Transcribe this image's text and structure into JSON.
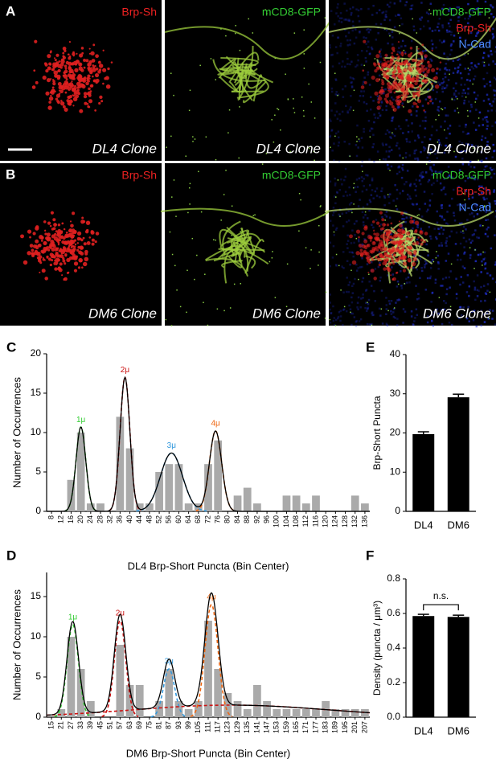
{
  "figure": {
    "image_rows": [
      {
        "panel": "A",
        "clone": "DL4 Clone"
      },
      {
        "panel": "B",
        "clone": "DM6 Clone"
      }
    ],
    "channels": {
      "red": "Brp-Sh",
      "green": "mCD8-GFP",
      "blue": "N-Cad"
    }
  },
  "chart_data": [
    {
      "panel": "C",
      "type": "histogram",
      "xlabel": "DL4 Brp-Short Puncta (Bin Center)",
      "ylabel": "Number of Occurrences",
      "categories": [
        8,
        12,
        16,
        20,
        24,
        28,
        32,
        36,
        40,
        44,
        48,
        52,
        56,
        60,
        64,
        68,
        72,
        76,
        80,
        84,
        88,
        92,
        96,
        100,
        104,
        108,
        112,
        116,
        120,
        124,
        128,
        132,
        136
      ],
      "values": [
        0,
        0,
        4,
        10,
        1,
        1,
        0,
        12,
        8,
        1,
        1,
        5,
        6,
        6,
        1,
        1,
        6,
        9,
        0,
        2,
        3,
        1,
        0,
        0,
        2,
        2,
        1,
        2,
        0,
        0,
        0,
        2,
        1
      ],
      "color": "#aaaaaa",
      "fit_color": "#000000",
      "fits": [
        {
          "label": "1μ",
          "color": "#33cc33",
          "amp": 10.7,
          "mean": 20,
          "sd": 2
        },
        {
          "label": "2μ",
          "color": "#cc1111",
          "amp": 17,
          "mean": 38,
          "sd": 2
        },
        {
          "label": "3μ",
          "color": "#3399dd",
          "amp": 7.4,
          "mean": 57,
          "sd": 4.5
        },
        {
          "label": "4μ",
          "color": "#ee6611",
          "amp": 10.2,
          "mean": 75,
          "sd": 2.5
        }
      ],
      "ylim": [
        0,
        20
      ],
      "yticks": [
        0,
        5,
        10,
        15,
        20
      ]
    },
    {
      "panel": "D",
      "type": "histogram",
      "xlabel": "DM6 Brp-Short Puncta (Bin Center)",
      "ylabel": "Number of Occurrences",
      "categories": [
        15,
        21,
        27,
        33,
        39,
        45,
        51,
        57,
        63,
        69,
        75,
        81,
        87,
        93,
        99,
        105,
        111,
        117,
        123,
        129,
        135,
        141,
        147,
        153,
        159,
        165,
        171,
        177,
        183,
        189,
        195,
        201,
        207
      ],
      "values": [
        0,
        1,
        10,
        6,
        2,
        0,
        0,
        9,
        4,
        4,
        0,
        2,
        6,
        2,
        1,
        2,
        12,
        6,
        3,
        2,
        1,
        4,
        2,
        1,
        1,
        1,
        1,
        1,
        2,
        1,
        1,
        1,
        1
      ],
      "color": "#aaaaaa",
      "fit_color": "#000000",
      "fits": [
        {
          "label": "1μ",
          "color": "#33cc33",
          "amp": 11.5,
          "mean": 28,
          "sd": 3.5
        },
        {
          "label": "2μ",
          "color": "#cc1111",
          "amp": 12,
          "mean": 57,
          "sd": 3.5
        },
        {
          "label": "3μ",
          "color": "#3399dd",
          "amp": 6,
          "mean": 87,
          "sd": 3.5
        },
        {
          "label": "4μ",
          "color": "#ee6611",
          "amp": 14,
          "mean": 113,
          "sd": 4
        },
        {
          "color": "#cc1111",
          "amp": 1.5,
          "mean": 125,
          "sd": 60
        }
      ],
      "ylim": [
        0,
        18
      ],
      "yticks": [
        0,
        5,
        10,
        15
      ]
    },
    {
      "panel": "E",
      "type": "bar",
      "ylabel": "Brp-Short Puncta",
      "categories": [
        "DL4",
        "DM6"
      ],
      "values": [
        19.7,
        29.1
      ],
      "errors": [
        0.6,
        0.8
      ],
      "color": "#000000",
      "ylim": [
        0,
        40
      ],
      "yticks": [
        0,
        10,
        20,
        30,
        40
      ]
    },
    {
      "panel": "F",
      "type": "bar",
      "ylabel": "Density (puncta / μm³)",
      "annotation": "n.s.",
      "categories": [
        "DL4",
        "DM6"
      ],
      "values": [
        0.585,
        0.58
      ],
      "errors": [
        0.01,
        0.01
      ],
      "color": "#000000",
      "ylim": [
        0,
        0.8
      ],
      "yticks": [
        {
          "value": 0,
          "label": "0.0"
        },
        0.2,
        0.4,
        0.6,
        0.8
      ]
    }
  ]
}
